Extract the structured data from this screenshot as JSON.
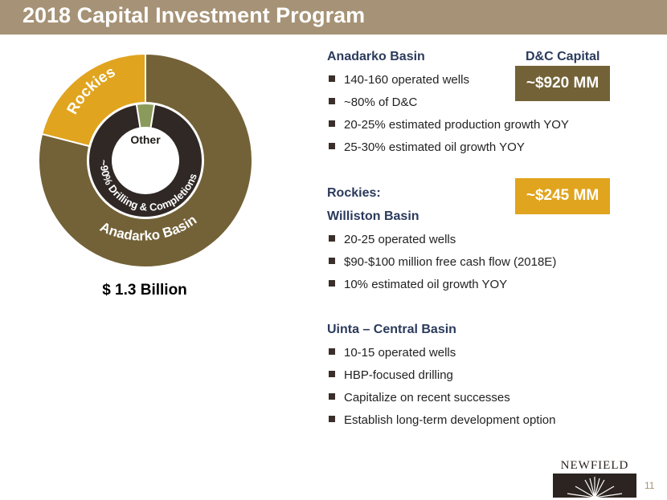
{
  "header": {
    "title": "2018 Capital Investment Program"
  },
  "chart_data": {
    "type": "pie",
    "style": "donut",
    "total_label": "$ 1.3 Billion",
    "outer_ring": [
      {
        "label": "Anadarko Basin",
        "value": 79,
        "color": "#736237"
      },
      {
        "label": "Rockies",
        "value": 21,
        "color": "#e0a41e"
      }
    ],
    "inner_ring": [
      {
        "label": "~90% Drilling & Completions",
        "value": 95,
        "color": "#302825"
      },
      {
        "label": "Other",
        "value": 5,
        "color": "#8a9a5b"
      }
    ]
  },
  "anadarko": {
    "heading": "Anadarko Basin",
    "capital_heading": "D&C Capital",
    "capital_value": "~$920 MM",
    "bullets": [
      "140-160 operated wells",
      "~80% of D&C",
      "20-25% estimated production growth YOY",
      "25-30% estimated oil growth YOY"
    ]
  },
  "rockies": {
    "heading": "Rockies:",
    "capital_value": "~$245 MM",
    "williston": {
      "heading": "Williston Basin",
      "bullets": [
        "20-25 operated wells",
        "$90-$100 million free cash flow (2018E)",
        "10% estimated oil growth YOY"
      ]
    },
    "uinta": {
      "heading": "Uinta – Central Basin",
      "bullets": [
        "10-15 operated wells",
        "HBP-focused drilling",
        "Capitalize on recent successes",
        "Establish long-term development option"
      ]
    }
  },
  "logo": {
    "text": "NEWFIELD",
    "icon": "starburst-icon"
  },
  "footer": {
    "page_number": "11"
  }
}
